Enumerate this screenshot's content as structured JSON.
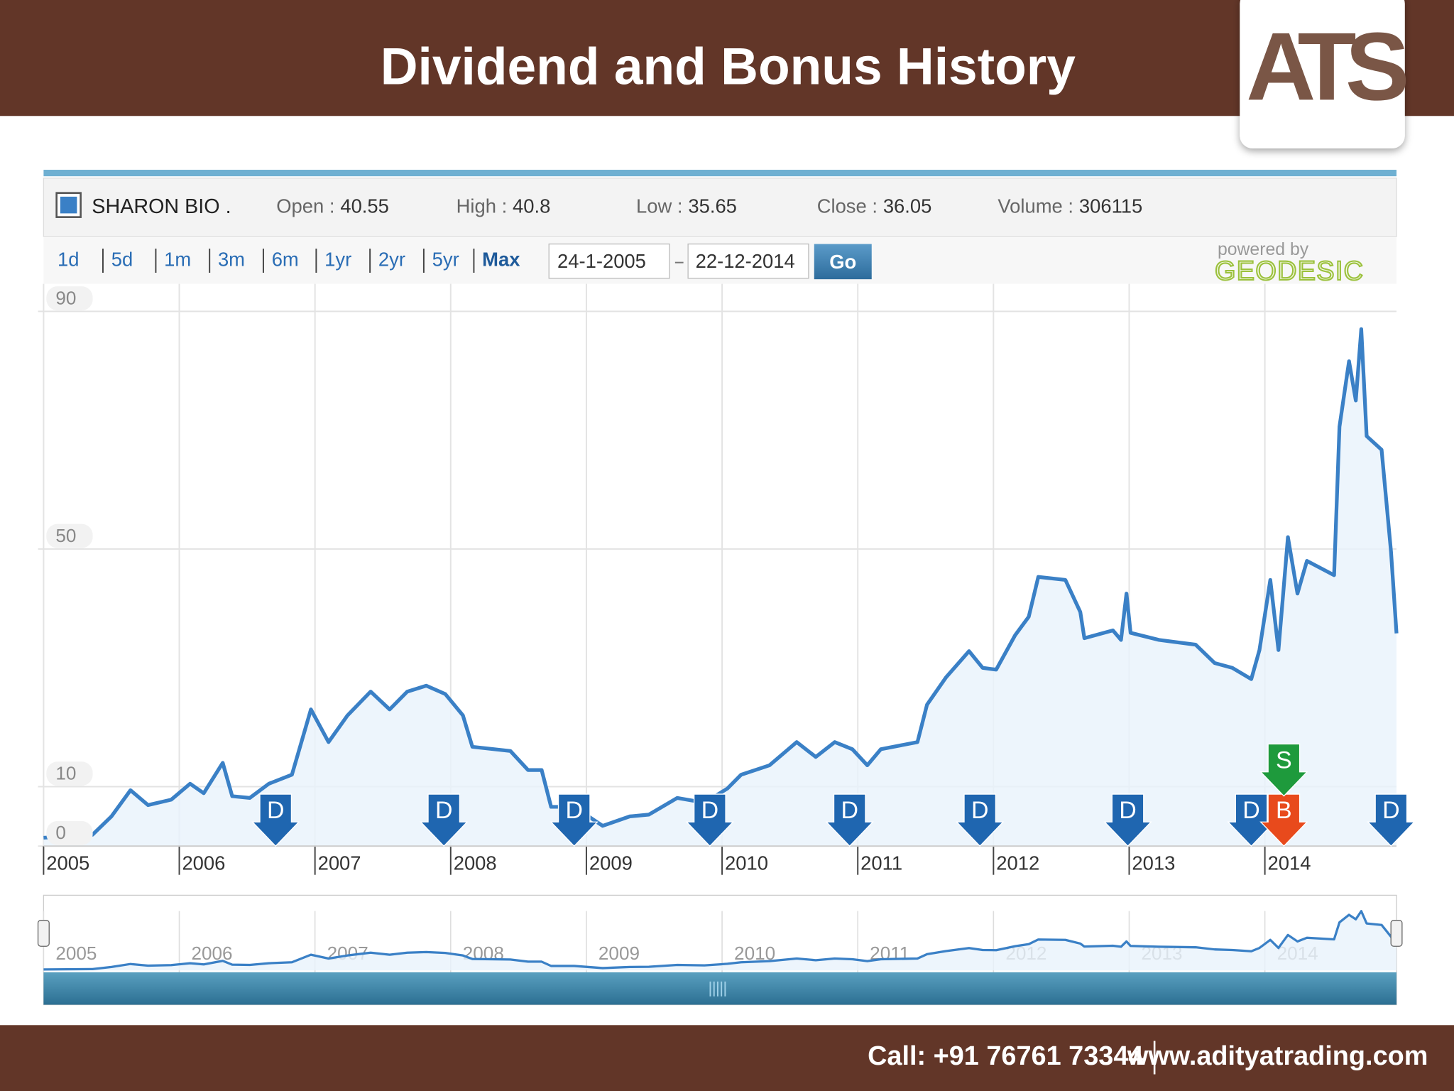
{
  "header": {
    "title": "Dividend and Bonus History",
    "logo": "ATS"
  },
  "quote": {
    "fields": [
      {
        "label": "Open :",
        "value": 40.55
      },
      {
        "label": "High :",
        "value": 40.8
      },
      {
        "label": "Low :",
        "value": 35.65
      },
      {
        "label": "Close :",
        "value": 36.05
      },
      {
        "label": "Volume :",
        "value": 306115
      }
    ]
  },
  "controls": {
    "ranges": [
      "1d",
      "5d",
      "1m",
      "3m",
      "6m",
      "1yr",
      "2yr",
      "5yr",
      "Max"
    ],
    "from": "24-1-2005",
    "to": "22-12-2014",
    "go": "Go",
    "powered_by": "powered by",
    "provider": "GEODESIC"
  },
  "chart_data": {
    "type": "line",
    "x": [
      2005.0,
      2005.36,
      2005.5,
      2005.64,
      2005.77,
      2005.94,
      2006.08,
      2006.18,
      2006.32,
      2006.39,
      2006.52,
      2006.66,
      2006.83,
      2006.97,
      2007.1,
      2007.24,
      2007.41,
      2007.55,
      2007.68,
      2007.82,
      2007.96,
      2008.09,
      2008.16,
      2008.44,
      2008.57,
      2008.67,
      2008.74,
      2008.91,
      2009.12,
      2009.32,
      2009.46,
      2009.67,
      2009.87,
      2010.04,
      2010.14,
      2010.35,
      2010.55,
      2010.69,
      2010.83,
      2010.96,
      2011.07,
      2011.17,
      2011.44,
      2011.51,
      2011.65,
      2011.82,
      2011.92,
      2012.02,
      2012.16,
      2012.26,
      2012.33,
      2012.53,
      2012.64,
      2012.67,
      2012.88,
      2012.94,
      2012.98,
      2013.01,
      2013.22,
      2013.49,
      2013.63,
      2013.76,
      2013.9,
      2013.96,
      2014.04,
      2014.1,
      2014.17,
      2014.24,
      2014.31,
      2014.51,
      2014.55,
      2014.62,
      2014.67,
      2014.71,
      2014.75,
      2014.86,
      2014.93,
      2014.97
    ],
    "series": [
      {
        "name": "SHARON BIO .",
        "color": "#3a80c6",
        "values": [
          1.4,
          1.9,
          5,
          9.4,
          6.9,
          7.8,
          10.5,
          8.9,
          14,
          8.4,
          8.1,
          10.5,
          12,
          23,
          17.5,
          22,
          26,
          23,
          26,
          27,
          25.6,
          22,
          16.7,
          16,
          12.8,
          12.8,
          6.6,
          6.6,
          3.4,
          5,
          5.3,
          8.1,
          7.3,
          9.7,
          12,
          13.6,
          17.5,
          15,
          17.5,
          16.3,
          13.6,
          16.3,
          17.5,
          23.8,
          28.4,
          32.8,
          30,
          29.7,
          35.5,
          38.6,
          45.3,
          44.8,
          39.4,
          35,
          36.3,
          34.7,
          42.5,
          35.9,
          34.7,
          33.9,
          30.8,
          30,
          28.1,
          33,
          44.8,
          33,
          52,
          42.5,
          48,
          45.6,
          70.6,
          81.6,
          75,
          87,
          69,
          66.7,
          49.5,
          35.8
        ]
      }
    ],
    "xlim": [
      2005,
      2014.97
    ],
    "xticks": [
      2005,
      2006,
      2007,
      2008,
      2009,
      2010,
      2011,
      2012,
      2013,
      2014
    ],
    "ylim": [
      0,
      94
    ],
    "yticks": [
      0,
      10,
      50,
      90
    ],
    "grid": true,
    "events": [
      {
        "label": "D",
        "x": 2006.71
      },
      {
        "label": "D",
        "x": 2007.95
      },
      {
        "label": "D",
        "x": 2008.91
      },
      {
        "label": "D",
        "x": 2009.91
      },
      {
        "label": "D",
        "x": 2010.94
      },
      {
        "label": "D",
        "x": 2011.9
      },
      {
        "label": "D",
        "x": 2012.99
      },
      {
        "label": "D",
        "x": 2013.9
      },
      {
        "label": "B",
        "x": 2014.14
      },
      {
        "label": "S",
        "x": 2014.14
      },
      {
        "label": "D",
        "x": 2014.93
      }
    ],
    "event_colors": {
      "D": "#1f66b0",
      "B": "#e84a1c",
      "S": "#1e9a3c"
    }
  },
  "footer": {
    "call": "Call: +91 76761 73344",
    "website": "www.adityatrading.com"
  }
}
